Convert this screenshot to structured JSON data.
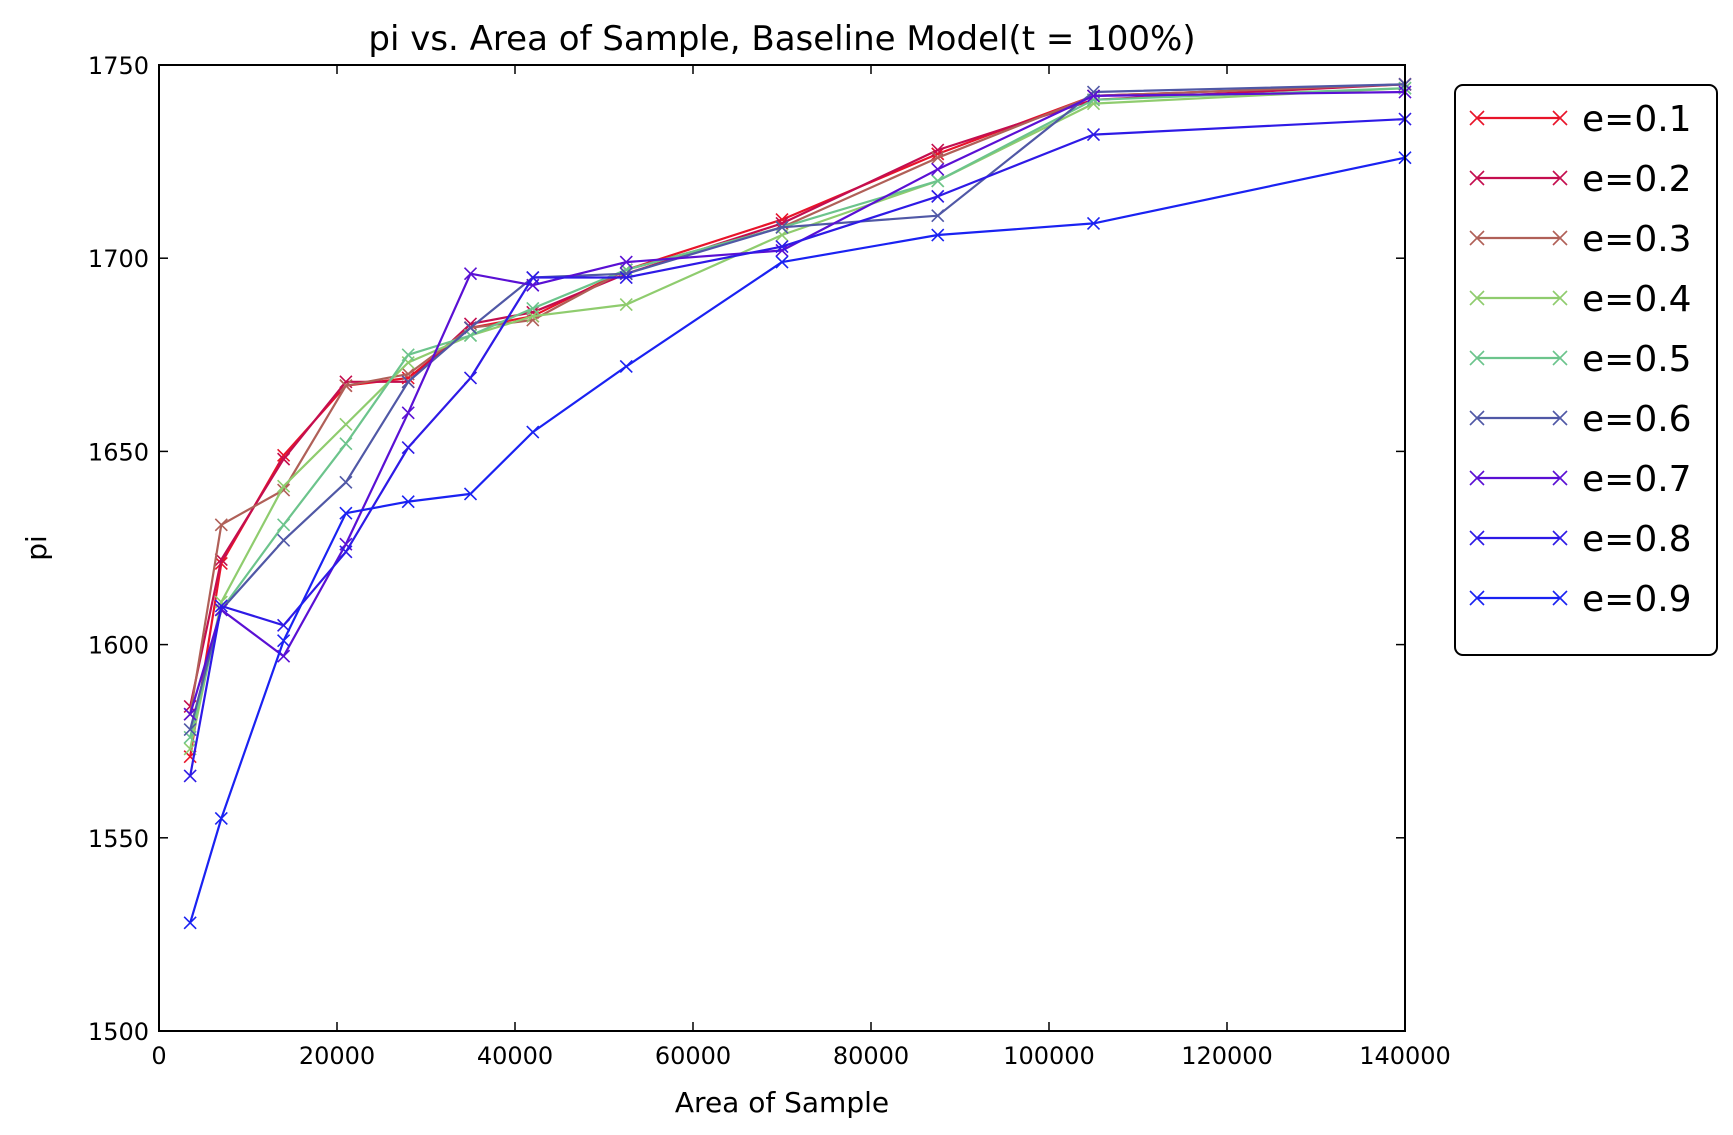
{
  "chart_data": {
    "type": "line",
    "title": "pi vs. Area of Sample, Baseline Model(t = 100%)",
    "xlabel": "Area of Sample",
    "ylabel": "pi",
    "xlim": [
      0,
      140000
    ],
    "ylim": [
      1500,
      1750
    ],
    "xticks": [
      0,
      20000,
      40000,
      60000,
      80000,
      100000,
      120000,
      140000
    ],
    "xtick_labels": [
      "0",
      "20000",
      "40000",
      "60000",
      "80000",
      "100000",
      "120000",
      "140000"
    ],
    "yticks": [
      1500,
      1550,
      1600,
      1650,
      1700,
      1750
    ],
    "ytick_labels": [
      "1500",
      "1550",
      "1600",
      "1650",
      "1700",
      "1750"
    ],
    "grid": false,
    "legend_position": "outside-right-top",
    "marker": "x",
    "x": [
      3500,
      7000,
      14000,
      21000,
      28000,
      35000,
      42000,
      52500,
      70000,
      87500,
      105000,
      140000
    ],
    "series": [
      {
        "name": "e=0.1",
        "color": "#e8142a",
        "values": [
          1571,
          1621,
          1649,
          1667,
          1669,
          1682,
          1685,
          1697,
          1710,
          1727,
          1742,
          1745
        ]
      },
      {
        "name": "e=0.2",
        "color": "#c40e4f",
        "values": [
          1584,
          1622,
          1648,
          1668,
          1668,
          1683,
          1686,
          1696,
          1709,
          1728,
          1741,
          1745
        ]
      },
      {
        "name": "e=0.3",
        "color": "#b06058",
        "values": [
          1582,
          1631,
          1640,
          1667,
          1670,
          1682,
          1684,
          1697,
          1708,
          1726,
          1742,
          1745
        ]
      },
      {
        "name": "e=0.4",
        "color": "#8fcc6e",
        "values": [
          1573,
          1611,
          1641,
          1657,
          1673,
          1680,
          1685,
          1688,
          1706,
          1720,
          1740,
          1744
        ]
      },
      {
        "name": "e=0.5",
        "color": "#6cc48c",
        "values": [
          1576,
          1609,
          1631,
          1652,
          1675,
          1680,
          1687,
          1697,
          1708,
          1720,
          1741,
          1744
        ]
      },
      {
        "name": "e=0.6",
        "color": "#5058a6",
        "values": [
          1578,
          1609,
          1627,
          1642,
          1668,
          1682,
          1695,
          1696,
          1708,
          1711,
          1743,
          1745
        ]
      },
      {
        "name": "e=0.7",
        "color": "#5a10d4",
        "values": [
          1582,
          1609,
          1597,
          1626,
          1660,
          1696,
          1693,
          1699,
          1702,
          1723,
          1742,
          1743
        ]
      },
      {
        "name": "e=0.8",
        "color": "#2e1ae6",
        "values": [
          1566,
          1610,
          1605,
          1624,
          1651,
          1669,
          1695,
          1695,
          1703,
          1716,
          1732,
          1736
        ]
      },
      {
        "name": "e=0.9",
        "color": "#1a22f2",
        "values": [
          1528,
          1555,
          1601,
          1634,
          1637,
          1639,
          1655,
          1672,
          1699,
          1706,
          1709,
          1726
        ]
      }
    ]
  }
}
